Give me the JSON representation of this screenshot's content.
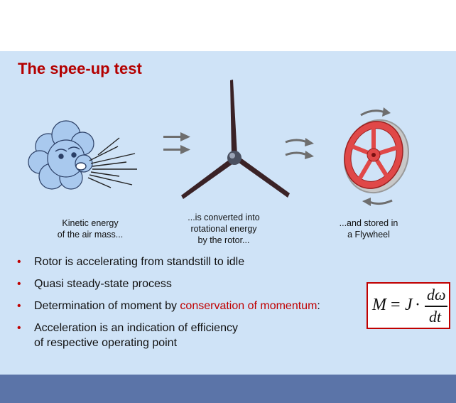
{
  "slide": {
    "title": "The spee-up test",
    "captions": {
      "wind": [
        "Kinetic energy",
        "of the air mass..."
      ],
      "rotor": [
        "...is converted into",
        "rotational energy",
        "by the rotor..."
      ],
      "flywheel": [
        "...and stored in",
        "a Flywheel"
      ]
    },
    "bullets": [
      {
        "text": "Rotor is accelerating from standstill to idle"
      },
      {
        "text": "Quasi steady-state process"
      },
      {
        "text_before": "Determination of moment by ",
        "highlight": "conservation of momentum",
        "text_after": ":"
      },
      {
        "line1": "Acceleration is an indication of efficiency",
        "line2": "of respective operating point"
      }
    ],
    "bullet_symbol": "•",
    "formula": {
      "lhs": "M",
      "equals": "=",
      "factor": "J",
      "dot": "·",
      "numerator": "dω",
      "denominator": "dt"
    },
    "colors": {
      "title": "#b40000",
      "accent": "#c00000",
      "background": "#cfe3f7",
      "footer": "#5b74a8"
    },
    "icons": [
      "wind-cloud-icon",
      "arrow-right-icon",
      "wind-turbine-rotor-icon",
      "curved-arrow-icon",
      "flywheel-icon"
    ]
  }
}
